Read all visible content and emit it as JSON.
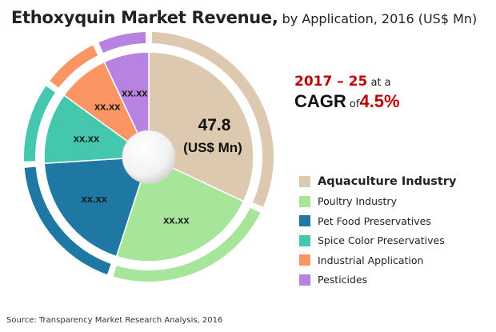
{
  "title": {
    "main": "Ethoxyquin Market Revenue,",
    "sub": " by Application, 2016 (US$ Mn)"
  },
  "cagr": {
    "years": "2017 – 25",
    "at_a": " at a",
    "cagr_label": "CAGR",
    "of": " of",
    "value": "4.5%"
  },
  "chart_data": {
    "type": "pie",
    "center_label": [
      "47.8",
      "(US$ Mn)"
    ],
    "slices": [
      {
        "name": "Aquaculture Industry",
        "label": "47.8\n(US$ Mn)",
        "share": 0.32,
        "color": "#dcc9af"
      },
      {
        "name": "Poultry Industry",
        "label": "xx.xx",
        "share": 0.23,
        "color": "#a6e59a"
      },
      {
        "name": "Pet Food Preservatives",
        "label": "xx.xx",
        "share": 0.19,
        "color": "#1f78a4"
      },
      {
        "name": "Spice Color Preservatives",
        "label": "xx.xx",
        "share": 0.11,
        "color": "#45c7ad"
      },
      {
        "name": "Industrial Application",
        "label": "xx.xx",
        "share": 0.08,
        "color": "#fb9664"
      },
      {
        "name": "Pesticides",
        "label": "xx.xx",
        "share": 0.07,
        "color": "#b883e0"
      }
    ]
  },
  "legend": [
    {
      "label": "Aquaculture Industry",
      "color": "#dcc9af"
    },
    {
      "label": "Poultry Industry",
      "color": "#a6e59a"
    },
    {
      "label": "Pet Food Preservatives",
      "color": "#1f78a4"
    },
    {
      "label": "Spice Color Preservatives",
      "color": "#45c7ad"
    },
    {
      "label": "Industrial Application",
      "color": "#fb9664"
    },
    {
      "label": "Pesticides",
      "color": "#b883e0"
    }
  ],
  "source": "Source: Transparency Market Research Analysis, 2016"
}
